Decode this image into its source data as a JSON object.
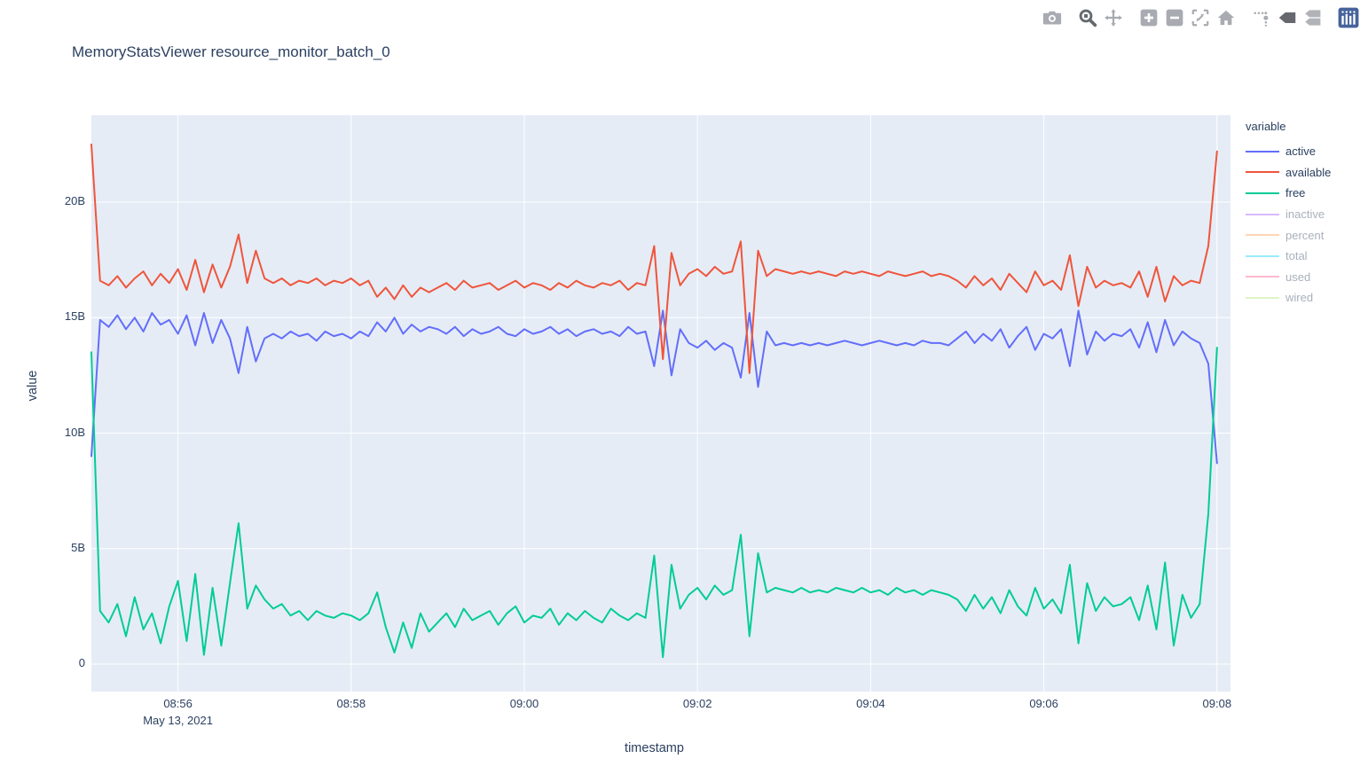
{
  "title": "MemoryStatsViewer resource_monitor_batch_0",
  "colors": {
    "plot_background": "#E5ECF6",
    "grid": "#FFFFFF",
    "paper": "#FFFFFF",
    "text": "#2A3F5F",
    "modebar_icon": "#A8ABB1",
    "modebar_icon_active": "#65696F",
    "plotly_logo_blue": "#47639C"
  },
  "modebar": {
    "icons": [
      {
        "name": "camera",
        "tooltip_role": "download plot as png",
        "active": false
      },
      {
        "name": "magnifier-zoom",
        "tooltip_role": "zoom",
        "active": true
      },
      {
        "name": "pan-arrows",
        "tooltip_role": "pan",
        "active": false
      },
      {
        "name": "zoom-in-plus",
        "tooltip_role": "zoom in",
        "active": false
      },
      {
        "name": "zoom-out-minus",
        "tooltip_role": "zoom out",
        "active": false
      },
      {
        "name": "autoscale-expand",
        "tooltip_role": "autoscale",
        "active": false
      },
      {
        "name": "home-reset",
        "tooltip_role": "reset axes",
        "active": false
      },
      {
        "name": "spikelines-dots",
        "tooltip_role": "toggle spike lines",
        "active": false
      },
      {
        "name": "hover-closest-tag",
        "tooltip_role": "show closest data on hover",
        "active": true
      },
      {
        "name": "hover-compare-tags",
        "tooltip_role": "compare data on hover",
        "active": false
      },
      {
        "name": "plotly-logo",
        "tooltip_role": "produced with plotly",
        "active": false
      }
    ]
  },
  "legend": {
    "title": "variable",
    "items": [
      {
        "label": "active",
        "color": "#636EFA",
        "enabled": true
      },
      {
        "label": "available",
        "color": "#EF553B",
        "enabled": true
      },
      {
        "label": "free",
        "color": "#00CC96",
        "enabled": true
      },
      {
        "label": "inactive",
        "color": "#AB63FA",
        "enabled": false
      },
      {
        "label": "percent",
        "color": "#FFA15A",
        "enabled": false
      },
      {
        "label": "total",
        "color": "#19D3F3",
        "enabled": false
      },
      {
        "label": "used",
        "color": "#FF6692",
        "enabled": false
      },
      {
        "label": "wired",
        "color": "#B6E880",
        "enabled": false
      }
    ]
  },
  "chart_data": {
    "type": "line",
    "title": "MemoryStatsViewer resource_monitor_batch_0",
    "xlabel": "timestamp",
    "ylabel": "value",
    "x_ticks": [
      "08:56",
      "08:58",
      "09:00",
      "09:02",
      "09:04",
      "09:06",
      "09:08"
    ],
    "x_tick_minutes": [
      1,
      3,
      5,
      7,
      9,
      11,
      13
    ],
    "x_date_label": "May 13, 2021",
    "y_ticks": [
      "0",
      "5B",
      "10B",
      "15B",
      "20B"
    ],
    "y_tick_values": [
      0,
      5,
      10,
      15,
      20
    ],
    "ylim_billions": [
      -1.2,
      23.8
    ],
    "x_range": [
      "08:55.0",
      "09:08.2"
    ],
    "x_unit": "minutes since 08:55 on May 13, 2021",
    "x_step_minutes": 0.1,
    "value_unit": "B (billions of bytes)",
    "grid": true,
    "legend_position": "right",
    "series": [
      {
        "name": "active",
        "color": "#636EFA",
        "visible": true,
        "values": [
          9.0,
          14.9,
          14.6,
          15.1,
          14.5,
          15.0,
          14.4,
          15.2,
          14.7,
          14.9,
          14.3,
          15.1,
          13.8,
          15.2,
          13.9,
          14.9,
          14.1,
          12.6,
          14.6,
          13.1,
          14.1,
          14.3,
          14.1,
          14.4,
          14.2,
          14.3,
          14.0,
          14.4,
          14.2,
          14.3,
          14.1,
          14.4,
          14.2,
          14.8,
          14.4,
          15.0,
          14.3,
          14.7,
          14.4,
          14.6,
          14.5,
          14.3,
          14.6,
          14.2,
          14.5,
          14.3,
          14.4,
          14.6,
          14.3,
          14.2,
          14.5,
          14.3,
          14.4,
          14.6,
          14.3,
          14.5,
          14.2,
          14.4,
          14.5,
          14.3,
          14.4,
          14.2,
          14.6,
          14.3,
          14.4,
          12.9,
          15.3,
          12.5,
          14.5,
          13.9,
          13.7,
          14.0,
          13.6,
          13.9,
          13.7,
          12.4,
          15.2,
          12.0,
          14.4,
          13.8,
          13.9,
          13.8,
          13.9,
          13.8,
          13.9,
          13.8,
          13.9,
          14.0,
          13.9,
          13.8,
          13.9,
          14.0,
          13.9,
          13.8,
          13.9,
          13.8,
          14.0,
          13.9,
          13.9,
          13.8,
          14.1,
          14.4,
          13.9,
          14.3,
          14.0,
          14.5,
          13.7,
          14.2,
          14.6,
          13.6,
          14.3,
          14.1,
          14.5,
          12.9,
          15.3,
          13.4,
          14.4,
          14.0,
          14.3,
          14.2,
          14.5,
          13.7,
          14.8,
          13.5,
          14.9,
          13.8,
          14.4,
          14.1,
          13.9,
          13.0,
          8.7
        ]
      },
      {
        "name": "available",
        "color": "#EF553B",
        "visible": true,
        "values": [
          22.5,
          16.6,
          16.4,
          16.8,
          16.3,
          16.7,
          17.0,
          16.4,
          16.9,
          16.5,
          17.1,
          16.2,
          17.5,
          16.1,
          17.3,
          16.3,
          17.2,
          18.6,
          16.5,
          17.9,
          16.7,
          16.5,
          16.7,
          16.4,
          16.6,
          16.5,
          16.7,
          16.4,
          16.6,
          16.5,
          16.7,
          16.4,
          16.6,
          15.9,
          16.3,
          15.8,
          16.4,
          15.9,
          16.3,
          16.1,
          16.3,
          16.5,
          16.2,
          16.6,
          16.3,
          16.4,
          16.5,
          16.2,
          16.4,
          16.6,
          16.3,
          16.5,
          16.4,
          16.2,
          16.5,
          16.3,
          16.6,
          16.4,
          16.3,
          16.5,
          16.4,
          16.6,
          16.2,
          16.5,
          16.4,
          18.1,
          13.2,
          17.8,
          16.4,
          16.9,
          17.1,
          16.8,
          17.2,
          16.9,
          17.0,
          18.3,
          12.6,
          17.9,
          16.8,
          17.1,
          17.0,
          16.9,
          17.0,
          16.9,
          17.0,
          16.9,
          16.8,
          17.0,
          16.9,
          17.0,
          16.9,
          16.8,
          17.0,
          16.9,
          16.8,
          16.9,
          17.0,
          16.8,
          16.9,
          16.8,
          16.6,
          16.3,
          16.8,
          16.4,
          16.7,
          16.2,
          16.9,
          16.5,
          16.1,
          17.0,
          16.4,
          16.6,
          16.2,
          17.7,
          15.5,
          17.2,
          16.3,
          16.6,
          16.4,
          16.5,
          16.3,
          17.0,
          15.9,
          17.2,
          15.7,
          16.8,
          16.4,
          16.6,
          16.5,
          18.1,
          22.2
        ]
      },
      {
        "name": "free",
        "color": "#00CC96",
        "visible": true,
        "values": [
          13.5,
          2.3,
          1.8,
          2.6,
          1.2,
          2.9,
          1.5,
          2.2,
          0.9,
          2.5,
          3.6,
          1.0,
          3.9,
          0.4,
          3.3,
          0.8,
          3.5,
          6.1,
          2.4,
          3.4,
          2.8,
          2.4,
          2.6,
          2.1,
          2.3,
          1.9,
          2.3,
          2.1,
          2.0,
          2.2,
          2.1,
          1.9,
          2.2,
          3.1,
          1.6,
          0.5,
          1.8,
          0.7,
          2.2,
          1.4,
          1.8,
          2.2,
          1.6,
          2.4,
          1.9,
          2.1,
          2.3,
          1.7,
          2.2,
          2.5,
          1.8,
          2.1,
          2.0,
          2.4,
          1.7,
          2.2,
          1.9,
          2.3,
          2.0,
          1.8,
          2.4,
          2.1,
          1.9,
          2.2,
          2.0,
          4.7,
          0.3,
          4.3,
          2.4,
          3.0,
          3.3,
          2.8,
          3.4,
          3.0,
          3.2,
          5.6,
          1.2,
          4.8,
          3.1,
          3.3,
          3.2,
          3.1,
          3.3,
          3.1,
          3.2,
          3.1,
          3.3,
          3.2,
          3.1,
          3.3,
          3.1,
          3.2,
          3.0,
          3.3,
          3.1,
          3.2,
          3.0,
          3.2,
          3.1,
          3.0,
          2.8,
          2.3,
          3.0,
          2.4,
          2.9,
          2.2,
          3.2,
          2.5,
          2.1,
          3.3,
          2.4,
          2.8,
          2.2,
          4.3,
          0.9,
          3.5,
          2.3,
          2.9,
          2.5,
          2.6,
          2.9,
          1.9,
          3.4,
          1.5,
          4.4,
          0.8,
          3.0,
          2.0,
          2.6,
          6.5,
          13.7
        ]
      },
      {
        "name": "inactive",
        "color": "#AB63FA",
        "visible": false,
        "values": []
      },
      {
        "name": "percent",
        "color": "#FFA15A",
        "visible": false,
        "values": []
      },
      {
        "name": "total",
        "color": "#19D3F3",
        "visible": false,
        "values": []
      },
      {
        "name": "used",
        "color": "#FF6692",
        "visible": false,
        "values": []
      },
      {
        "name": "wired",
        "color": "#B6E880",
        "visible": false,
        "values": []
      }
    ]
  }
}
